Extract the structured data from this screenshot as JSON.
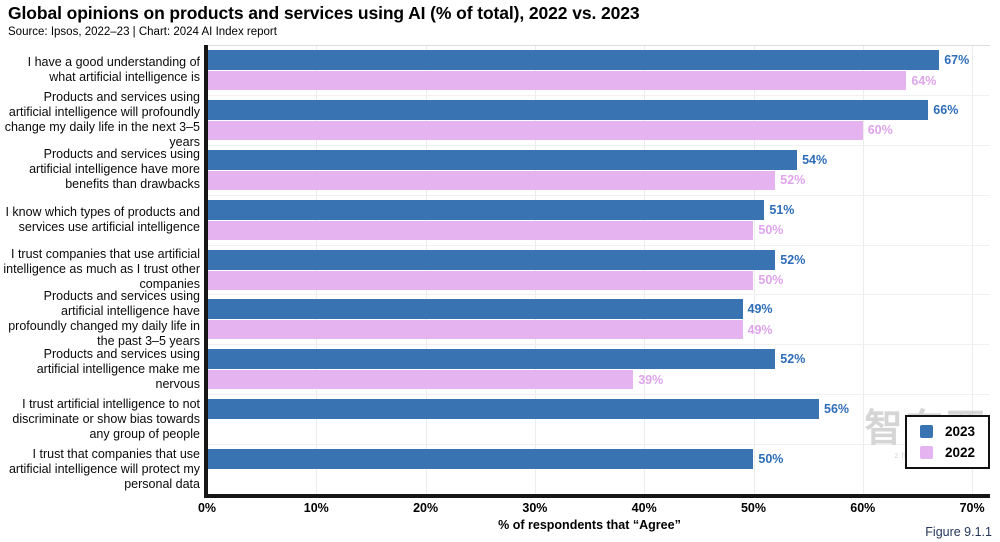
{
  "header": {
    "title": "Global opinions on products and services using AI (% of total), 2022 vs. 2023",
    "source": "Source: Ipsos, 2022–23 | Chart: 2024 AI Index report"
  },
  "chart_data": {
    "type": "bar",
    "orientation": "horizontal",
    "title": "Global opinions on products and services using AI (% of total), 2022 vs. 2023",
    "xlabel": "% of respondents that “Agree”",
    "xlim": [
      0,
      70
    ],
    "xticks": [
      "0%",
      "10%",
      "20%",
      "30%",
      "40%",
      "50%",
      "60%",
      "70%"
    ],
    "grid": "vertical",
    "legend_position": "bottom-right",
    "categories": [
      "I have a good understanding of what artificial intelligence is",
      "Products and services using artificial intelligence will profoundly change my daily life in the next 3–5 years",
      "Products and services using artificial intelligence have more benefits than drawbacks",
      "I know which types of products and services use artificial intelligence",
      "I trust companies that use artificial intelligence as much as I trust other companies",
      "Products and services using artificial intelligence have profoundly changed my daily life in the past 3–5 years",
      "Products and services using artificial intelligence make me nervous",
      "I trust artificial intelligence to not discriminate or show bias towards any group of people",
      "I trust that companies that use artificial intelligence will protect my personal data"
    ],
    "series": [
      {
        "name": "2023",
        "color": "#3973b2",
        "value_label_color": "#2e6db8",
        "values": [
          67,
          66,
          54,
          51,
          52,
          49,
          52,
          56,
          50
        ]
      },
      {
        "name": "2022",
        "color": "#e5b3f0",
        "value_label_color": "#dfa4ec",
        "values": [
          64,
          60,
          52,
          50,
          50,
          49,
          39,
          null,
          null
        ]
      }
    ]
  },
  "footer": {
    "figure_label": "Figure 9.1.1"
  },
  "watermark": {
    "text": "智东西",
    "subtext": "zhidx.com"
  }
}
